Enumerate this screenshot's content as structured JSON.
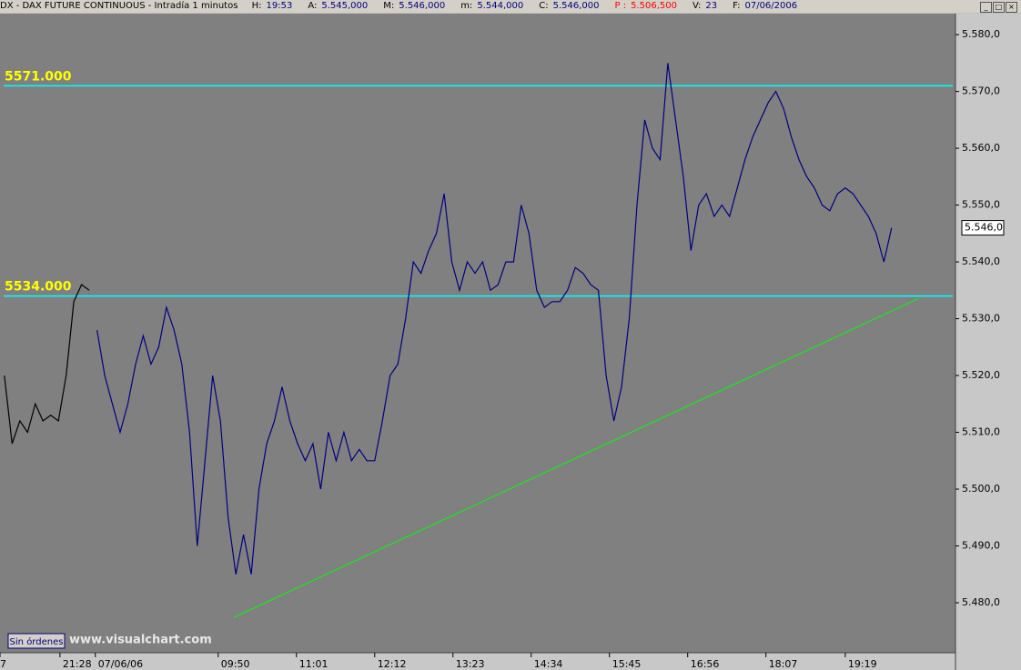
{
  "header": {
    "title": "DX - DAX FUTURE CONTINUOUS - Intradía 1 minutos",
    "fields": [
      {
        "label": "H:",
        "value": "19:53"
      },
      {
        "label": "A:",
        "value": "5.545,000"
      },
      {
        "label": "M:",
        "value": "5.546,000"
      },
      {
        "label": "m:",
        "value": "5.544,000"
      },
      {
        "label": "C:",
        "value": "5.546,000"
      },
      {
        "label": "P :",
        "value": "5.506,500",
        "color": "#ff0000"
      },
      {
        "label": "V:",
        "value": "23"
      },
      {
        "label": "F:",
        "value": "07/06/2006"
      }
    ]
  },
  "chart_data": {
    "type": "line",
    "xlim": [
      -198,
      669
    ],
    "ylim": [
      5471.2,
      5583.7
    ],
    "xticks": [
      {
        "value": -198,
        "label": "7"
      },
      {
        "value": -143.6,
        "label": "21:28"
      },
      {
        "value": -111.5,
        "label": "07/06/06"
      },
      {
        "value": 0,
        "label": "09:50"
      },
      {
        "value": 71,
        "label": "11:01"
      },
      {
        "value": 142,
        "label": "12:12"
      },
      {
        "value": 213,
        "label": "13:23"
      },
      {
        "value": 284,
        "label": "14:34"
      },
      {
        "value": 355,
        "label": "15:45"
      },
      {
        "value": 426,
        "label": "16:56"
      },
      {
        "value": 497,
        "label": "18:07"
      },
      {
        "value": 569,
        "label": "19:19"
      }
    ],
    "yticks": [
      {
        "value": 5480,
        "label": "5.480,0"
      },
      {
        "value": 5490,
        "label": "5.490,0"
      },
      {
        "value": 5500,
        "label": "5.500,0"
      },
      {
        "value": 5510,
        "label": "5.510,0"
      },
      {
        "value": 5520,
        "label": "5.520,0"
      },
      {
        "value": 5530,
        "label": "5.530,0"
      },
      {
        "value": 5540,
        "label": "5.540,0"
      },
      {
        "value": 5550,
        "label": "5.550,0"
      },
      {
        "value": 5560,
        "label": "5.560,0"
      },
      {
        "value": 5570,
        "label": "5.570,0"
      },
      {
        "value": 5580,
        "label": "5.580,0"
      }
    ],
    "series": [
      {
        "color": "#000000",
        "x": [
          -194,
          -187,
          -180,
          -173,
          -166,
          -159,
          -152,
          -145,
          -138,
          -131,
          -124,
          -117
        ],
        "values": [
          5520,
          5508,
          5512,
          5510,
          5515,
          5512,
          5513,
          5512,
          5520,
          5533,
          5536,
          5535
        ]
      },
      {
        "color": "#000080",
        "x": [
          -110,
          -103,
          -96,
          -89,
          -82,
          -75,
          -68,
          -61,
          -54,
          -47,
          -40,
          -33,
          -26,
          -19,
          -12,
          -5,
          2,
          9,
          16,
          23,
          30,
          37,
          44,
          51,
          58,
          65,
          72,
          79,
          86,
          93,
          100,
          107,
          114,
          121,
          128,
          135,
          142,
          149,
          156,
          163,
          170,
          177,
          184,
          191,
          198,
          205,
          212,
          219,
          226,
          233,
          240,
          247,
          254,
          261,
          268,
          275,
          282,
          289,
          296,
          303,
          310,
          317,
          324,
          331,
          338,
          345,
          352,
          359,
          366,
          373,
          380,
          387,
          394,
          401,
          408,
          415,
          422,
          429,
          436,
          443,
          450,
          457,
          464,
          471,
          478,
          485,
          492,
          499,
          506,
          513,
          520,
          527,
          534,
          541,
          548,
          555,
          562,
          569,
          576,
          583,
          590,
          597,
          604,
          611
        ],
        "values": [
          5528,
          5520,
          5515,
          5510,
          5515,
          5522,
          5527,
          5522,
          5525,
          5532,
          5528,
          5522,
          5510,
          5490,
          5505,
          5520,
          5512,
          5495,
          5485,
          5492,
          5485,
          5500,
          5508,
          5512,
          5518,
          5512,
          5508,
          5505,
          5508,
          5500,
          5510,
          5505,
          5510,
          5505,
          5507,
          5505,
          5505,
          5512,
          5520,
          5522,
          5530,
          5540,
          5538,
          5542,
          5545,
          5552,
          5540,
          5535,
          5540,
          5538,
          5540,
          5535,
          5536,
          5540,
          5540,
          5550,
          5545,
          5535,
          5532,
          5533,
          5533,
          5535,
          5539,
          5538,
          5536,
          5535,
          5520,
          5512,
          5518,
          5530,
          5550,
          5565,
          5560,
          5558,
          5575,
          5565,
          5555,
          5542,
          5550,
          5552,
          5548,
          5550,
          5548,
          5553,
          5558,
          5562,
          5565,
          5568,
          5570,
          5567,
          5562,
          5558,
          5555,
          5553,
          5550,
          5549,
          5552,
          5553,
          5552,
          5550,
          5548,
          5545,
          5540,
          5546
        ]
      }
    ],
    "last_price_label": "5.546,0",
    "hlines": [
      {
        "value": 5571,
        "label": "5571.000",
        "color": "#00ffff"
      },
      {
        "value": 5534,
        "label": "5534.000",
        "color": "#00ffff"
      }
    ],
    "trendline": {
      "x": [
        14,
        636
      ],
      "values": [
        5477.4,
        5533.6
      ],
      "color": "#00ff00"
    }
  },
  "footer": {
    "status_button": "Sin órdenes",
    "watermark": "www.visualchart.com"
  }
}
